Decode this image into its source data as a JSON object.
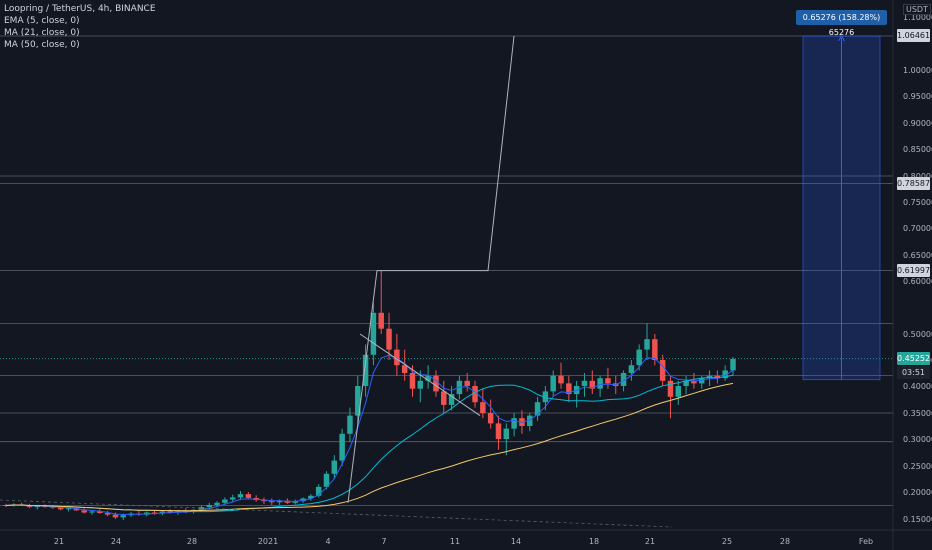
{
  "legend": {
    "symbol": "Loopring / TetherUS, 4h, BINANCE",
    "ema": "EMA (5, close, 0)",
    "ma21": "MA (21, close, 0)",
    "ma50": "MA (50, close, 0)"
  },
  "currency": "USDT",
  "measure_label": "0.65276 (158.28%) 65276",
  "price_tags": {
    "target": "1.06461",
    "resistance": "0.78587",
    "mid": "0.61997",
    "current": "0.45252",
    "countdown": "03:51"
  },
  "colors": {
    "up": "#26a69a",
    "down": "#ef5350",
    "ema": "#2962ff",
    "ma21": "#00bcd4",
    "ma50": "#f6c76b",
    "measure": "#2962ff"
  },
  "chart_data": {
    "type": "candlestick",
    "y_axis_labels": [
      "1.10000",
      "1.00000",
      "0.95000",
      "0.90000",
      "0.85000",
      "0.80000",
      "0.75000",
      "0.70000",
      "0.65000",
      "0.60000",
      "0.50000",
      "0.45000",
      "0.40000",
      "0.35000",
      "0.30000",
      "0.25000",
      "0.20000",
      "0.15000"
    ],
    "y_axis_values": [
      1.1,
      1.0,
      0.95,
      0.9,
      0.85,
      0.8,
      0.75,
      0.7,
      0.65,
      0.6,
      0.5,
      0.45,
      0.4,
      0.35,
      0.3,
      0.25,
      0.2,
      0.15
    ],
    "x_axis_labels": [
      "21",
      "24",
      "28",
      "2021",
      "4",
      "7",
      "11",
      "14",
      "18",
      "21",
      "25",
      "28",
      "Feb"
    ],
    "horizontal_levels": [
      1.06461,
      0.8,
      0.78587,
      0.61997,
      0.52,
      0.45252,
      0.42,
      0.35,
      0.295,
      0.175
    ],
    "measure": {
      "from": 0.412,
      "to": 1.06461,
      "change": 0.65276,
      "percent": 158.28
    },
    "ylim": [
      0.14,
      1.12
    ],
    "candles": [
      [
        0.176,
        0.178,
        0.172,
        0.175
      ],
      [
        0.175,
        0.179,
        0.173,
        0.177
      ],
      [
        0.177,
        0.18,
        0.174,
        0.176
      ],
      [
        0.176,
        0.178,
        0.17,
        0.172
      ],
      [
        0.172,
        0.176,
        0.168,
        0.174
      ],
      [
        0.174,
        0.177,
        0.171,
        0.173
      ],
      [
        0.173,
        0.176,
        0.169,
        0.171
      ],
      [
        0.171,
        0.174,
        0.166,
        0.168
      ],
      [
        0.168,
        0.172,
        0.164,
        0.17
      ],
      [
        0.17,
        0.173,
        0.165,
        0.166
      ],
      [
        0.166,
        0.17,
        0.16,
        0.162
      ],
      [
        0.162,
        0.166,
        0.158,
        0.164
      ],
      [
        0.164,
        0.168,
        0.16,
        0.161
      ],
      [
        0.161,
        0.165,
        0.155,
        0.158
      ],
      [
        0.158,
        0.162,
        0.15,
        0.153
      ],
      [
        0.153,
        0.16,
        0.148,
        0.157
      ],
      [
        0.157,
        0.163,
        0.154,
        0.16
      ],
      [
        0.16,
        0.165,
        0.156,
        0.158
      ],
      [
        0.158,
        0.164,
        0.155,
        0.162
      ],
      [
        0.162,
        0.166,
        0.158,
        0.16
      ],
      [
        0.16,
        0.166,
        0.157,
        0.164
      ],
      [
        0.164,
        0.168,
        0.16,
        0.162
      ],
      [
        0.162,
        0.167,
        0.158,
        0.165
      ],
      [
        0.165,
        0.17,
        0.161,
        0.163
      ],
      [
        0.163,
        0.168,
        0.16,
        0.167
      ],
      [
        0.167,
        0.175,
        0.164,
        0.172
      ],
      [
        0.172,
        0.18,
        0.168,
        0.176
      ],
      [
        0.176,
        0.183,
        0.172,
        0.18
      ],
      [
        0.18,
        0.19,
        0.176,
        0.186
      ],
      [
        0.186,
        0.195,
        0.181,
        0.19
      ],
      [
        0.19,
        0.202,
        0.185,
        0.196
      ],
      [
        0.196,
        0.2,
        0.186,
        0.189
      ],
      [
        0.189,
        0.194,
        0.182,
        0.185
      ],
      [
        0.185,
        0.19,
        0.178,
        0.183
      ],
      [
        0.183,
        0.188,
        0.176,
        0.181
      ],
      [
        0.181,
        0.186,
        0.176,
        0.184
      ],
      [
        0.184,
        0.188,
        0.178,
        0.18
      ],
      [
        0.18,
        0.186,
        0.177,
        0.183
      ],
      [
        0.183,
        0.19,
        0.18,
        0.188
      ],
      [
        0.188,
        0.196,
        0.184,
        0.193
      ],
      [
        0.193,
        0.215,
        0.19,
        0.21
      ],
      [
        0.21,
        0.24,
        0.205,
        0.235
      ],
      [
        0.235,
        0.27,
        0.225,
        0.26
      ],
      [
        0.26,
        0.32,
        0.25,
        0.31
      ],
      [
        0.31,
        0.36,
        0.295,
        0.345
      ],
      [
        0.345,
        0.42,
        0.33,
        0.4
      ],
      [
        0.4,
        0.48,
        0.38,
        0.46
      ],
      [
        0.46,
        0.56,
        0.44,
        0.54
      ],
      [
        0.54,
        0.62,
        0.5,
        0.51
      ],
      [
        0.51,
        0.54,
        0.45,
        0.47
      ],
      [
        0.47,
        0.5,
        0.42,
        0.44
      ],
      [
        0.44,
        0.47,
        0.41,
        0.425
      ],
      [
        0.425,
        0.44,
        0.38,
        0.395
      ],
      [
        0.395,
        0.43,
        0.37,
        0.41
      ],
      [
        0.41,
        0.44,
        0.395,
        0.42
      ],
      [
        0.42,
        0.43,
        0.38,
        0.39
      ],
      [
        0.39,
        0.41,
        0.35,
        0.365
      ],
      [
        0.365,
        0.4,
        0.355,
        0.385
      ],
      [
        0.385,
        0.42,
        0.375,
        0.41
      ],
      [
        0.41,
        0.425,
        0.39,
        0.4
      ],
      [
        0.4,
        0.41,
        0.36,
        0.37
      ],
      [
        0.37,
        0.395,
        0.34,
        0.35
      ],
      [
        0.35,
        0.375,
        0.32,
        0.33
      ],
      [
        0.33,
        0.345,
        0.28,
        0.3
      ],
      [
        0.3,
        0.33,
        0.27,
        0.32
      ],
      [
        0.32,
        0.35,
        0.305,
        0.34
      ],
      [
        0.34,
        0.355,
        0.31,
        0.325
      ],
      [
        0.325,
        0.35,
        0.315,
        0.345
      ],
      [
        0.345,
        0.38,
        0.335,
        0.37
      ],
      [
        0.37,
        0.4,
        0.355,
        0.39
      ],
      [
        0.39,
        0.43,
        0.38,
        0.42
      ],
      [
        0.42,
        0.445,
        0.395,
        0.405
      ],
      [
        0.405,
        0.42,
        0.37,
        0.385
      ],
      [
        0.385,
        0.41,
        0.36,
        0.4
      ],
      [
        0.4,
        0.425,
        0.38,
        0.41
      ],
      [
        0.41,
        0.43,
        0.385,
        0.395
      ],
      [
        0.395,
        0.42,
        0.38,
        0.415
      ],
      [
        0.415,
        0.435,
        0.395,
        0.405
      ],
      [
        0.405,
        0.42,
        0.385,
        0.4
      ],
      [
        0.4,
        0.43,
        0.39,
        0.425
      ],
      [
        0.425,
        0.45,
        0.41,
        0.44
      ],
      [
        0.44,
        0.48,
        0.43,
        0.47
      ],
      [
        0.47,
        0.52,
        0.45,
        0.49
      ],
      [
        0.49,
        0.5,
        0.44,
        0.45
      ],
      [
        0.45,
        0.46,
        0.4,
        0.41
      ],
      [
        0.41,
        0.42,
        0.34,
        0.38
      ],
      [
        0.38,
        0.41,
        0.365,
        0.4
      ],
      [
        0.4,
        0.42,
        0.385,
        0.41
      ],
      [
        0.41,
        0.425,
        0.395,
        0.405
      ],
      [
        0.405,
        0.42,
        0.395,
        0.415
      ],
      [
        0.415,
        0.43,
        0.4,
        0.42
      ],
      [
        0.42,
        0.43,
        0.405,
        0.415
      ],
      [
        0.415,
        0.44,
        0.41,
        0.43
      ],
      [
        0.43,
        0.456,
        0.42,
        0.452
      ]
    ]
  }
}
